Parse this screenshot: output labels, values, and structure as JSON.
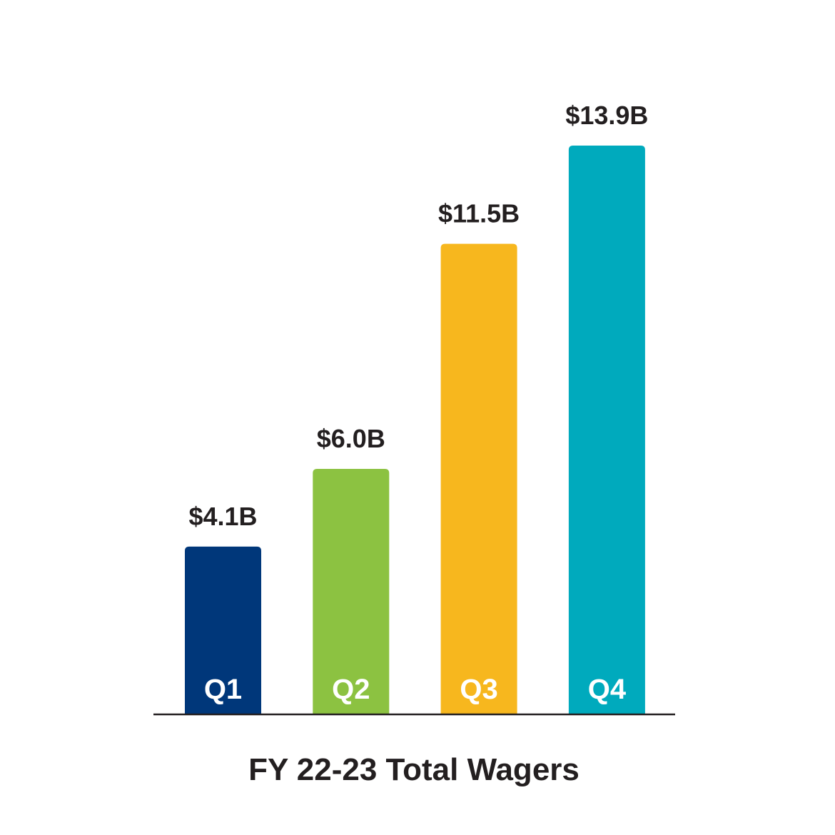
{
  "chart_data": {
    "type": "bar",
    "title": "FY 22-23 Total Wagers",
    "categories": [
      "Q1",
      "Q2",
      "Q3",
      "Q4"
    ],
    "values": [
      4.1,
      6.0,
      11.5,
      13.9
    ],
    "value_labels": [
      "$4.1B",
      "$6.0B",
      "$11.5B",
      "$13.9B"
    ],
    "unit": "$B",
    "colors": [
      "#00377a",
      "#8cc241",
      "#f7b71e",
      "#00aabd"
    ],
    "ylim": [
      0,
      13.9
    ],
    "grid": false,
    "legend": "none"
  }
}
